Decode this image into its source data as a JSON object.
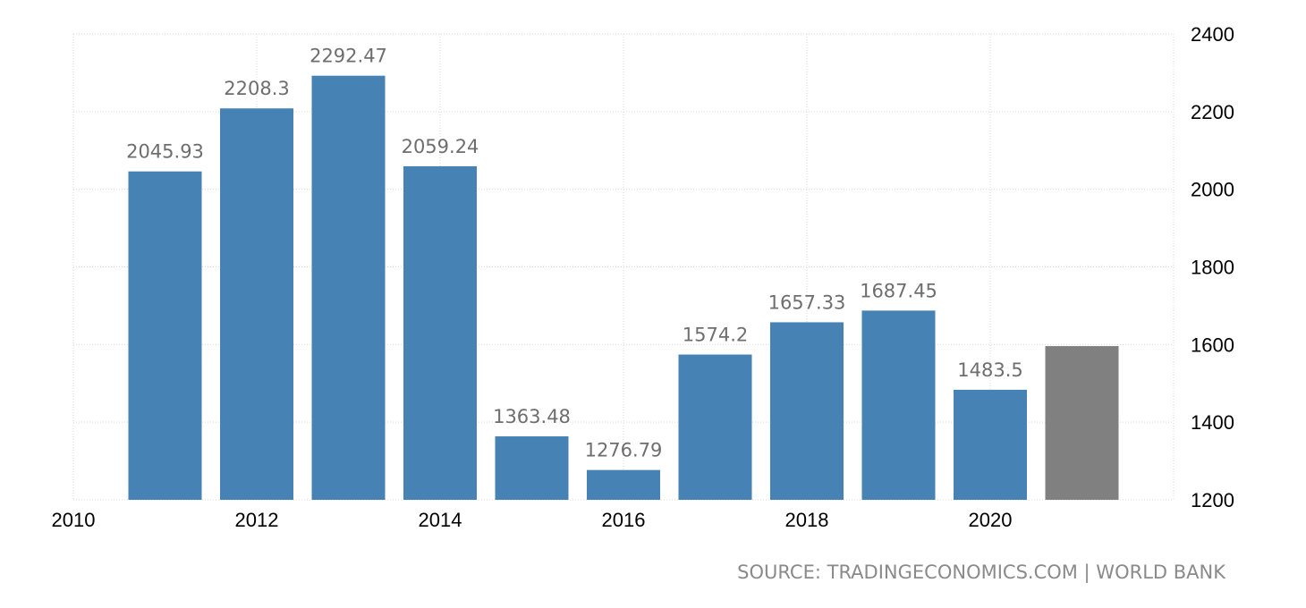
{
  "chart_data": {
    "type": "bar",
    "x": [
      2011,
      2012,
      2013,
      2014,
      2015,
      2016,
      2017,
      2018,
      2019,
      2020,
      2021
    ],
    "values": [
      2045.93,
      2208.3,
      2292.47,
      2059.24,
      1363.48,
      1276.79,
      1574.2,
      1657.33,
      1687.45,
      1483.5,
      1596
    ],
    "data_labels": [
      "2045.93",
      "2208.3",
      "2292.47",
      "2059.24",
      "1363.48",
      "1276.79",
      "1574.2",
      "1657.33",
      "1687.45",
      "1483.5",
      ""
    ],
    "bar_colors": [
      "#4682b4",
      "#4682b4",
      "#4682b4",
      "#4682b4",
      "#4682b4",
      "#4682b4",
      "#4682b4",
      "#4682b4",
      "#4682b4",
      "#4682b4",
      "#808080"
    ],
    "x_ticks": [
      "2010",
      "2012",
      "2014",
      "2016",
      "2018",
      "2020"
    ],
    "x_tick_values": [
      2010,
      2012,
      2014,
      2016,
      2018,
      2020
    ],
    "y_ticks": [
      "1200",
      "1400",
      "1600",
      "1800",
      "2000",
      "2200",
      "2400"
    ],
    "ylim": [
      1200,
      2400
    ],
    "xlim": [
      2010,
      2022
    ],
    "y_axis_side": "right",
    "grid": true,
    "title": "",
    "xlabel": "",
    "ylabel": ""
  },
  "source": "SOURCE: TRADINGECONOMICS.COM | WORLD BANK"
}
